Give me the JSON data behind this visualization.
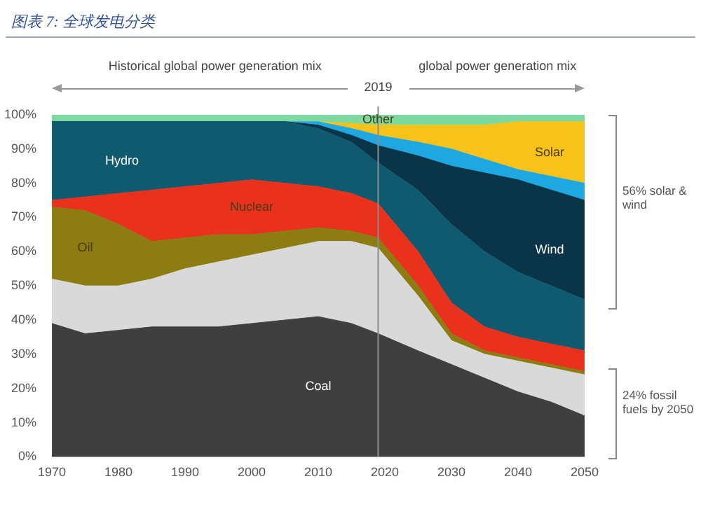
{
  "chart_data": {
    "type": "area",
    "title": "图表 7: 全球发电分类",
    "stacked": true,
    "legend": false,
    "grid": false,
    "x": [
      1970,
      1975,
      1980,
      1985,
      1990,
      1995,
      2000,
      2005,
      2010,
      2015,
      2019,
      2025,
      2030,
      2035,
      2040,
      2045,
      2050
    ],
    "xlim": [
      1970,
      2050
    ],
    "xticks": [
      1970,
      1980,
      1990,
      2000,
      2010,
      2020,
      2030,
      2040,
      2050
    ],
    "ylim": [
      0,
      100
    ],
    "yticks": [
      {
        "value": 0,
        "label": "0%"
      },
      {
        "value": 10,
        "label": "10%"
      },
      {
        "value": 20,
        "label": "20%"
      },
      {
        "value": 30,
        "label": "30%"
      },
      {
        "value": 40,
        "label": "40%"
      },
      {
        "value": 50,
        "label": "50%"
      },
      {
        "value": 60,
        "label": "60%"
      },
      {
        "value": 70,
        "label": "70%"
      },
      {
        "value": 80,
        "label": "80%"
      },
      {
        "value": 90,
        "label": "90%"
      },
      {
        "value": 100,
        "label": "100%"
      }
    ],
    "series": [
      {
        "name": "Coal",
        "color": "#3f3f3f",
        "values": [
          39,
          36,
          37,
          38,
          38,
          38,
          39,
          40,
          41,
          39,
          36,
          31,
          27,
          23,
          19,
          16,
          12
        ]
      },
      {
        "color": "#d9d9d9",
        "values": [
          13,
          14,
          13,
          14,
          17,
          19,
          20,
          21,
          22,
          24,
          25,
          16,
          7,
          7,
          9,
          10,
          12
        ]
      },
      {
        "name": "Oil",
        "color": "#8c7c12",
        "values": [
          21,
          22,
          18,
          11,
          9,
          8,
          6,
          5,
          4,
          3,
          3,
          3,
          2,
          1,
          1,
          1,
          1
        ]
      },
      {
        "name": "Nuclear",
        "color": "#e8321e",
        "values": [
          2,
          4,
          9,
          15,
          15,
          15,
          16,
          14,
          12,
          11,
          10,
          10,
          9,
          7,
          6,
          6,
          6
        ]
      },
      {
        "name": "Hydro",
        "color": "#0f5a6e",
        "values": [
          23,
          22,
          21,
          20,
          19,
          18,
          17,
          18,
          17,
          15,
          12,
          18,
          23,
          22,
          19,
          17,
          15
        ]
      },
      {
        "name": "Wind",
        "color": "#0a3447",
        "values": [
          0,
          0,
          0,
          0,
          0,
          0,
          0,
          0,
          1,
          2,
          5,
          10,
          17,
          23,
          27,
          28,
          29
        ]
      },
      {
        "color": "#1ea7e1",
        "values": [
          0,
          0,
          0,
          0,
          0,
          0,
          0,
          0,
          1,
          2,
          3,
          4,
          5,
          4,
          3,
          4,
          5
        ]
      },
      {
        "name": "Solar",
        "color": "#f7c21a",
        "values": [
          0,
          0,
          0,
          0,
          0,
          0,
          0,
          0,
          0,
          1.5,
          3,
          5,
          7,
          10,
          14,
          16,
          18
        ]
      },
      {
        "name": "Other",
        "color": "#7ed9a0",
        "values": [
          2,
          2,
          2,
          2,
          2,
          2,
          2,
          2,
          2,
          2.5,
          3,
          3,
          3,
          3,
          2,
          2,
          2
        ]
      }
    ],
    "ref_lines": [
      {
        "axis": "x",
        "value": 2019,
        "label": "2019",
        "color": "#8c8c8c"
      }
    ],
    "annotations": [
      "Historical global power generation mix",
      "global power generation mix",
      "56% solar & wind",
      "24% fossil fuels by 2050"
    ]
  }
}
